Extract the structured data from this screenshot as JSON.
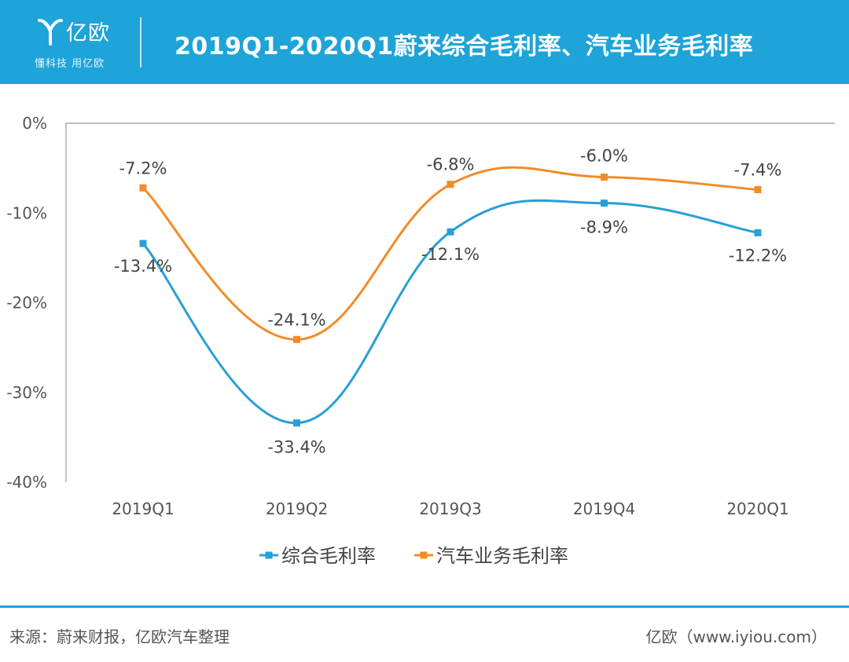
{
  "header": {
    "logo_text": "亿欧",
    "slogan": "懂科技 用亿欧",
    "title": "2019Q1-2020Q1蔚来综合毛利率、汽车业务毛利率"
  },
  "colors": {
    "header_bg": "#1ea4d8",
    "series_1": "#2a9fd6",
    "series_2": "#f28c28"
  },
  "chart_data": {
    "type": "line",
    "categories": [
      "2019Q1",
      "2019Q2",
      "2019Q3",
      "2019Q4",
      "2020Q1"
    ],
    "series": [
      {
        "name": "综合毛利率",
        "values": [
          -13.4,
          -33.4,
          -12.1,
          -8.9,
          -12.2
        ],
        "labels": [
          "-13.4%",
          "-33.4%",
          "-12.1%",
          "-8.9%",
          "-12.2%"
        ]
      },
      {
        "name": "汽车业务毛利率",
        "values": [
          -7.2,
          -24.1,
          -6.8,
          -6.0,
          -7.4
        ],
        "labels": [
          "-7.2%",
          "-24.1%",
          "-6.8%",
          "-6.0%",
          "-7.4%"
        ]
      }
    ],
    "y_ticks": [
      "0%",
      "-10%",
      "-20%",
      "-30%",
      "-40%"
    ],
    "ylim": [
      -40,
      0
    ],
    "smooth": true,
    "grid": false,
    "legend": "bottom"
  },
  "footer": {
    "source": "来源：蔚来财报，亿欧汽车整理",
    "site": "亿欧（www.iyiou.com）"
  }
}
